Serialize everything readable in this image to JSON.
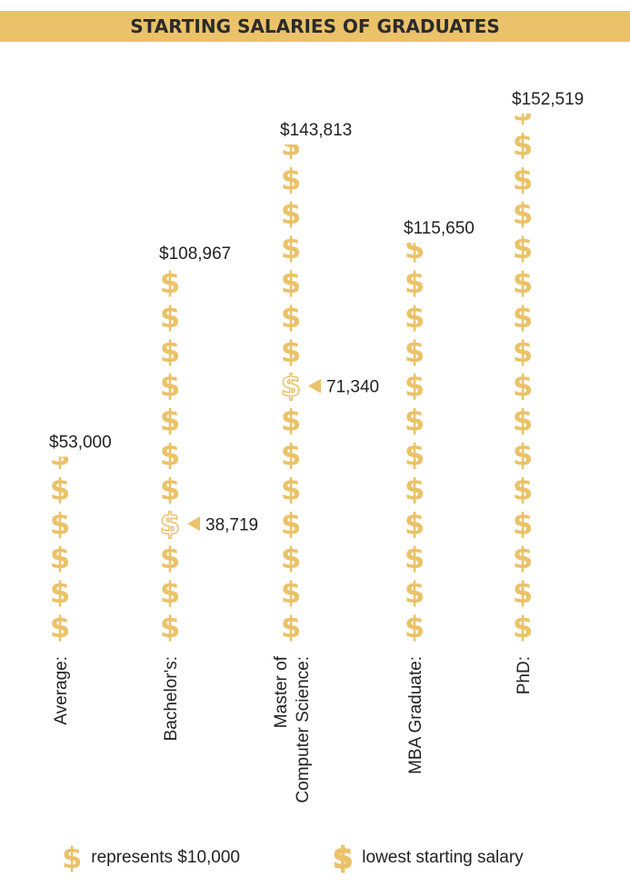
{
  "chart_data": {
    "type": "bar",
    "title": "STARTING SALARIES OF GRADUATES",
    "unit_value": 10000,
    "categories": [
      "Average:",
      "Bachelor's:",
      "Master of\nComputer Science:",
      "MBA Graduate:",
      "PhD:"
    ],
    "values": [
      53000,
      108967,
      143813,
      115650,
      152519
    ],
    "value_labels": [
      "$53,000",
      "$108,967",
      "$143,813",
      "$115,650",
      "$152,519"
    ],
    "lowest_values": [
      null,
      38719,
      71340,
      null,
      null
    ],
    "lowest_labels": [
      null,
      "38,719",
      "71,340",
      null,
      null
    ]
  },
  "legend": [
    {
      "icon": "dollar-icon",
      "text": "represents $10,000"
    },
    {
      "icon": "outline-dollar-icon",
      "text": "lowest starting salary"
    }
  ],
  "colors": {
    "accent": "#ebc269",
    "text": "#222222"
  }
}
